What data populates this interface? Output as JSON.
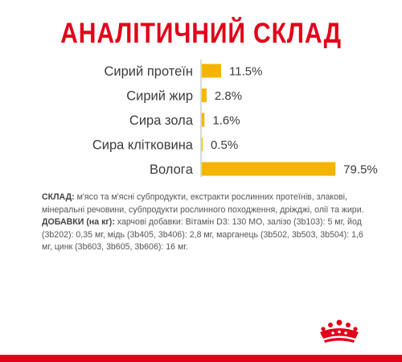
{
  "colors": {
    "title": "#e2001a",
    "bar": "#f5b400",
    "text": "#3c3c3c",
    "brand_red": "#e2001a"
  },
  "chart_data": {
    "type": "bar",
    "orientation": "horizontal",
    "title": "АНАЛІТИЧНИЙ СКЛАД",
    "categories": [
      "Сирий протеїн",
      "Сирий жир",
      "Сира зола",
      "Сира клітковина",
      "Вологa"
    ],
    "values": [
      11.5,
      2.8,
      1.6,
      0.5,
      79.5
    ],
    "value_labels": [
      "11.5%",
      "2.8%",
      "1.6%",
      "0.5%",
      "79.5%"
    ],
    "unit": "%",
    "xlim": [
      0,
      100
    ],
    "grid": false,
    "legend": "none"
  },
  "composition": {
    "sklad_label": "СКЛАД:",
    "sklad_text": " м'ясо та м'ясні субпродукти, екстракти рослинних протеїнів, злакові, мінеральні речовини, субпродукти рослинного походження, дріжджі, олії та жири.",
    "additives_label": "ДОБАВКИ (на кг):",
    "additives_text": " харчові добавки: Вітамін D3: 130 МО, залізо (3b103): 5 мг, йод (3b202): 0,35 мг, мідь (3b405, 3b406): 2,8 мг, марганець (3b502, 3b503, 3b504): 1,6 мг, цинк (3b603, 3b605, 3b606): 16 мг."
  },
  "logo": {
    "icon": "crown-logo-icon"
  }
}
